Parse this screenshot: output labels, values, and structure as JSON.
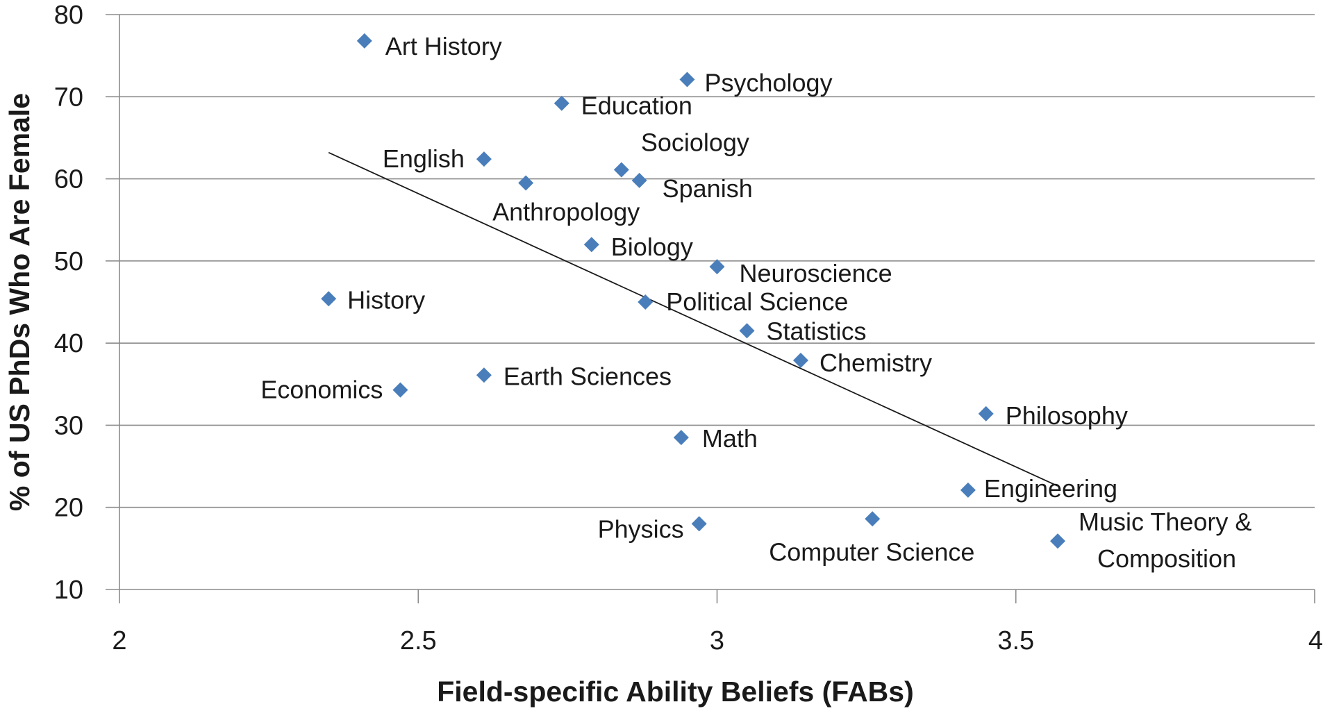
{
  "chart_data": {
    "type": "scatter",
    "xlabel": "Field-specific Ability Beliefs (FABs)",
    "ylabel": "% of US PhDs Who Are Female",
    "xlim": [
      2,
      4
    ],
    "ylim": [
      10,
      80
    ],
    "xticks": [
      2,
      2.5,
      3,
      3.5,
      4
    ],
    "yticks": [
      10,
      20,
      30,
      40,
      50,
      60,
      70,
      80
    ],
    "xtick_labels": [
      "2",
      "2.5",
      "3",
      "3.5",
      "4"
    ],
    "ytick_labels": [
      "10",
      "20",
      "30",
      "40",
      "50",
      "60",
      "70",
      "80"
    ],
    "grid": "horizontal",
    "marker": "diamond",
    "marker_color": "#4a7ebb",
    "trendline": {
      "x": [
        2.35,
        3.57
      ],
      "y": [
        63.2,
        22.6
      ],
      "color": "#1a1a1a"
    },
    "points": [
      {
        "label": "Art History",
        "x": 2.41,
        "y": 76.8
      },
      {
        "label": "Psychology",
        "x": 2.95,
        "y": 72.1
      },
      {
        "label": "Education",
        "x": 2.74,
        "y": 69.2
      },
      {
        "label": "English",
        "x": 2.61,
        "y": 62.4
      },
      {
        "label": "Sociology",
        "x": 2.84,
        "y": 61.1
      },
      {
        "label": "Spanish",
        "x": 2.87,
        "y": 59.8
      },
      {
        "label": "Anthropology",
        "x": 2.68,
        "y": 59.5
      },
      {
        "label": "Biology",
        "x": 2.79,
        "y": 52.0
      },
      {
        "label": "Neuroscience",
        "x": 3.0,
        "y": 49.3
      },
      {
        "label": "History",
        "x": 2.35,
        "y": 45.4
      },
      {
        "label": "Political Science",
        "x": 2.88,
        "y": 45.0
      },
      {
        "label": "Statistics",
        "x": 3.05,
        "y": 41.5
      },
      {
        "label": "Chemistry",
        "x": 3.14,
        "y": 37.9
      },
      {
        "label": "Earth Sciences",
        "x": 2.61,
        "y": 36.1
      },
      {
        "label": "Economics",
        "x": 2.47,
        "y": 34.3
      },
      {
        "label": "Philosophy",
        "x": 3.45,
        "y": 31.4
      },
      {
        "label": "Math",
        "x": 2.94,
        "y": 28.5
      },
      {
        "label": "Engineering",
        "x": 3.42,
        "y": 22.1
      },
      {
        "label": "Computer Science",
        "x": 3.26,
        "y": 18.6
      },
      {
        "label": "Physics",
        "x": 2.97,
        "y": 18.0
      },
      {
        "label": "Music Theory & Composition",
        "x": 3.57,
        "y": 15.9
      }
    ]
  }
}
